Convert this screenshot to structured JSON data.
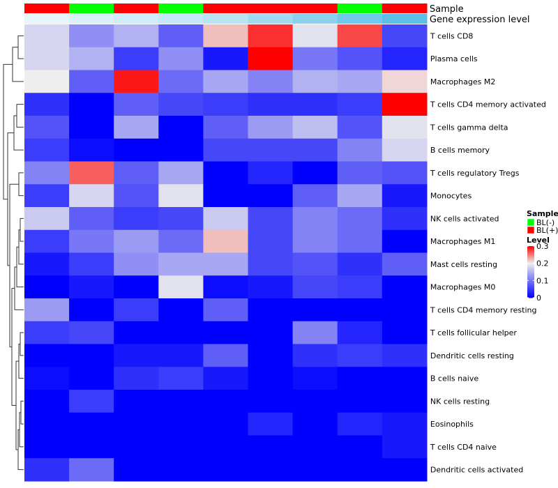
{
  "chart_data": {
    "type": "heatmap",
    "annotation_tracks": [
      {
        "label": "Sample",
        "values": [
          "BL(+)",
          "BL(-)",
          "BL(+)",
          "BL(-)",
          "BL(+)",
          "BL(+)",
          "BL(+)",
          "BL(-)",
          "BL(+)"
        ]
      },
      {
        "label": "Gene expression level",
        "values": [
          0.1,
          0.15,
          0.2,
          0.25,
          0.3,
          0.4,
          0.5,
          0.6,
          0.7
        ]
      }
    ],
    "rows": [
      "T cells CD8",
      "Plasma cells",
      "Macrophages M2",
      "T cells CD4 memory activated",
      "T cells gamma delta",
      "B cells memory",
      "T cells regulatory  Tregs",
      "Monocytes",
      "NK cells activated",
      "Macrophages M1",
      "Mast cells resting",
      "Macrophages M0",
      "T cells CD4 memory resting",
      "T cells follicular helper",
      "Dendritic cells resting",
      "B cells naive",
      "NK cells resting",
      "Eosinophils",
      "T cells CD4 naive",
      "Dendritic cells activated"
    ],
    "values": [
      [
        0.18,
        0.12,
        0.15,
        0.08,
        0.22,
        0.28,
        0.19,
        0.27,
        0.06
      ],
      [
        0.18,
        0.15,
        0.05,
        0.12,
        0.02,
        0.3,
        0.1,
        0.07,
        0.03
      ],
      [
        0.2,
        0.08,
        0.29,
        0.09,
        0.14,
        0.11,
        0.15,
        0.14,
        0.21
      ],
      [
        0.04,
        0.0,
        0.08,
        0.06,
        0.05,
        0.04,
        0.04,
        0.05,
        0.3
      ],
      [
        0.07,
        0.0,
        0.14,
        0.0,
        0.08,
        0.13,
        0.16,
        0.07,
        0.19
      ],
      [
        0.05,
        0.01,
        0.0,
        0.0,
        0.06,
        0.06,
        0.06,
        0.11,
        0.18
      ],
      [
        0.11,
        0.26,
        0.08,
        0.14,
        0.0,
        0.03,
        0.0,
        0.08,
        0.07
      ],
      [
        0.05,
        0.18,
        0.07,
        0.19,
        0.0,
        0.0,
        0.08,
        0.14,
        0.02
      ],
      [
        0.17,
        0.08,
        0.05,
        0.06,
        0.17,
        0.06,
        0.11,
        0.09,
        0.04
      ],
      [
        0.05,
        0.1,
        0.13,
        0.09,
        0.22,
        0.06,
        0.11,
        0.09,
        0.0
      ],
      [
        0.02,
        0.05,
        0.12,
        0.14,
        0.14,
        0.06,
        0.07,
        0.04,
        0.08
      ],
      [
        0.0,
        0.02,
        0.0,
        0.19,
        0.01,
        0.02,
        0.06,
        0.05,
        0.0
      ],
      [
        0.13,
        0.0,
        0.05,
        0.0,
        0.08,
        0.0,
        0.0,
        0.0,
        0.0
      ],
      [
        0.05,
        0.06,
        0.0,
        0.0,
        0.0,
        0.0,
        0.11,
        0.03,
        0.0
      ],
      [
        0.0,
        0.0,
        0.02,
        0.02,
        0.08,
        0.0,
        0.04,
        0.05,
        0.04
      ],
      [
        0.01,
        0.0,
        0.04,
        0.05,
        0.02,
        0.0,
        0.01,
        0.0,
        0.0
      ],
      [
        0.0,
        0.05,
        0.0,
        0.0,
        0.0,
        0.0,
        0.0,
        0.0,
        0.0
      ],
      [
        0.0,
        0.0,
        0.0,
        0.0,
        0.0,
        0.03,
        0.0,
        0.03,
        0.02
      ],
      [
        0.0,
        0.0,
        0.0,
        0.0,
        0.0,
        0.0,
        0.0,
        0.0,
        0.02
      ],
      [
        0.04,
        0.09,
        0.0,
        0.0,
        0.0,
        0.0,
        0.0,
        0.0,
        0.0
      ]
    ],
    "color_scale": {
      "min": 0,
      "mid": 0.2,
      "max": 0.3,
      "low": "#0000ff",
      "midColor": "#eeeeee",
      "high": "#ff0000"
    },
    "sample_legend": {
      "title": "Sample",
      "entries": [
        {
          "label": "BL(-)",
          "color": "#00ff00"
        },
        {
          "label": "BL(+)",
          "color": "#ff0000"
        }
      ]
    },
    "level_legend": {
      "title": "Level",
      "ticks": [
        {
          "value": 0.3,
          "label": "0.3"
        },
        {
          "value": 0.2,
          "label": "0.2"
        },
        {
          "value": 0.1,
          "label": "0.1"
        },
        {
          "value": 0,
          "label": "0"
        }
      ]
    },
    "expression_colors": {
      "low": "#e6f6fb",
      "high": "#5bbfe6"
    },
    "row_dendrogram": true
  }
}
